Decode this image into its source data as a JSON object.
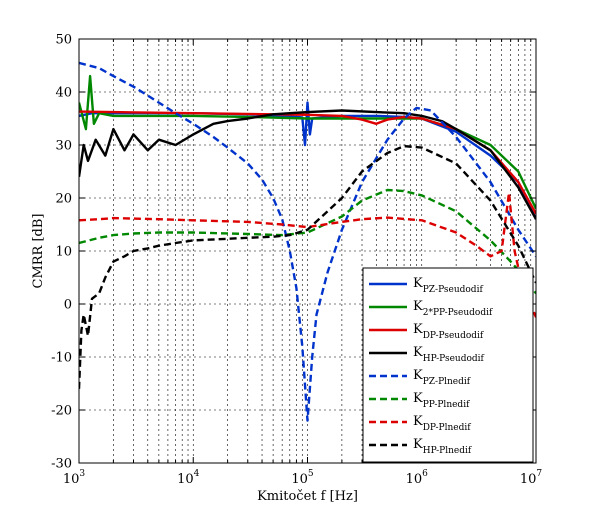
{
  "chart_data": {
    "type": "line",
    "xscale": "log",
    "xlim": [
      1000,
      10000000
    ],
    "ylim": [
      -30,
      50
    ],
    "xlabel": "Kmitočet f [Hz]",
    "ylabel": "CMRR [dB]",
    "grid": true,
    "legend_position": "bottom-right",
    "x_ticks": [
      {
        "base": "10",
        "exp": "3"
      },
      {
        "base": "10",
        "exp": "4"
      },
      {
        "base": "10",
        "exp": "5"
      },
      {
        "base": "10",
        "exp": "6"
      },
      {
        "base": "10",
        "exp": "7"
      }
    ],
    "y_ticks": [
      "50",
      "40",
      "30",
      "20",
      "10",
      "0",
      "-10",
      "-20",
      "-30"
    ],
    "series": [
      {
        "name_main": "K",
        "name_sub": "PZ-Pseudodif",
        "color": "#0033cc",
        "dash": "solid",
        "x": [
          1000,
          1300,
          2000,
          5000,
          10000,
          30000,
          60000,
          90000,
          95000,
          100000,
          105000,
          110000,
          200000,
          400000,
          700000,
          1000000,
          2000000,
          4000000,
          7000000,
          10000000
        ],
        "y": [
          35.5,
          36,
          36,
          36,
          36,
          35.8,
          35.5,
          35.2,
          30,
          38,
          32,
          35,
          35.5,
          35.5,
          35.3,
          35,
          32.5,
          28,
          23,
          16
        ]
      },
      {
        "name_main": "K",
        "name_sub": "2*PP-Pseudodif",
        "color": "#008800",
        "dash": "solid",
        "x": [
          1000,
          1150,
          1250,
          1350,
          1500,
          2000,
          3000,
          10000,
          30000,
          100000,
          300000,
          1000000,
          2000000,
          4000000,
          7000000,
          10000000
        ],
        "y": [
          38,
          33,
          43,
          34,
          36,
          35.5,
          35.5,
          35.5,
          35.3,
          35,
          35,
          35,
          33,
          30,
          25,
          18
        ]
      },
      {
        "name_main": "K",
        "name_sub": "DP-Pseudodif",
        "color": "#dd0000",
        "dash": "solid",
        "x": [
          1000,
          2000,
          10000,
          50000,
          100000,
          200000,
          300000,
          400000,
          500000,
          700000,
          1000000,
          2000000,
          4000000,
          7000000,
          10000000
        ],
        "y": [
          36.3,
          36.2,
          36,
          35.8,
          35.7,
          35.5,
          34.8,
          34,
          34.8,
          35.3,
          35,
          33,
          29,
          23,
          17
        ]
      },
      {
        "name_main": "K",
        "name_sub": "HP-Pseudodif",
        "color": "#000000",
        "dash": "solid",
        "x": [
          1000,
          1100,
          1200,
          1400,
          1700,
          2000,
          2500,
          3000,
          4000,
          5000,
          7000,
          10000,
          15000,
          20000,
          30000,
          50000,
          70000,
          100000,
          200000,
          400000,
          700000,
          1000000,
          1500000,
          2000000,
          4000000,
          7000000,
          10000000
        ],
        "y": [
          24,
          30,
          27,
          31,
          28,
          33,
          29,
          32,
          29,
          31,
          30,
          32,
          34,
          34.5,
          35,
          35.8,
          36,
          36.2,
          36.5,
          36.2,
          36,
          35.5,
          34.5,
          33,
          29,
          22,
          16
        ]
      },
      {
        "name_main": "K",
        "name_sub": "PZ-Plnedif",
        "color": "#0033cc",
        "dash": "dashed",
        "x": [
          1000,
          1500,
          2000,
          3000,
          5000,
          7000,
          10000,
          15000,
          20000,
          30000,
          40000,
          50000,
          60000,
          70000,
          80000,
          90000,
          100000,
          110000,
          120000,
          150000,
          200000,
          300000,
          500000,
          700000,
          900000,
          1200000,
          2000000,
          4000000,
          7000000,
          10000000
        ],
        "y": [
          45.5,
          44.5,
          43,
          41,
          38,
          36,
          34,
          31.5,
          29.5,
          26.5,
          23.5,
          20,
          16,
          10,
          3,
          -8,
          -22,
          -10,
          -2,
          6,
          14,
          23,
          31,
          35,
          37,
          36.5,
          31.5,
          23,
          14,
          9
        ]
      },
      {
        "name_main": "K",
        "name_sub": "PP-Plnedif",
        "color": "#008800",
        "dash": "dashed",
        "x": [
          1000,
          1500,
          2000,
          3000,
          5000,
          10000,
          30000,
          60000,
          100000,
          200000,
          300000,
          500000,
          700000,
          1000000,
          2000000,
          4000000,
          6000000,
          8000000,
          10000000
        ],
        "y": [
          11.5,
          12.5,
          13,
          13.3,
          13.5,
          13.5,
          13.2,
          13,
          13.5,
          16.5,
          19.5,
          21.5,
          21.3,
          20.5,
          17.5,
          12,
          8,
          5,
          2
        ]
      },
      {
        "name_main": "K",
        "name_sub": "DP-Plnedif",
        "color": "#dd0000",
        "dash": "dashed",
        "x": [
          1000,
          1500,
          2000,
          5000,
          10000,
          30000,
          60000,
          100000,
          200000,
          300000,
          500000,
          1000000,
          2000000,
          3000000,
          4000000,
          5000000,
          5800000,
          6500000,
          7500000,
          10000000
        ],
        "y": [
          15.8,
          16,
          16.2,
          16,
          15.8,
          15.5,
          15,
          14.5,
          15.5,
          16,
          16.3,
          15.8,
          13.5,
          11,
          9,
          10,
          21,
          10,
          4,
          -2.5
        ]
      },
      {
        "name_main": "K",
        "name_sub": "HP-Plnedif",
        "color": "#000000",
        "dash": "dashed",
        "x": [
          1000,
          1050,
          1100,
          1200,
          1300,
          1500,
          1700,
          2000,
          2500,
          3000,
          4000,
          5000,
          7000,
          10000,
          20000,
          30000,
          50000,
          70000,
          100000,
          200000,
          300000,
          500000,
          700000,
          1000000,
          2000000,
          4000000,
          7000000,
          10000000
        ],
        "y": [
          -16,
          -5,
          -2,
          -6,
          1,
          2,
          5,
          8,
          9,
          10,
          10.5,
          11,
          11.5,
          12,
          12.3,
          12.5,
          12.7,
          13,
          14,
          20,
          25,
          28.5,
          29.8,
          29.5,
          26.5,
          19.5,
          11,
          4
        ]
      }
    ]
  }
}
